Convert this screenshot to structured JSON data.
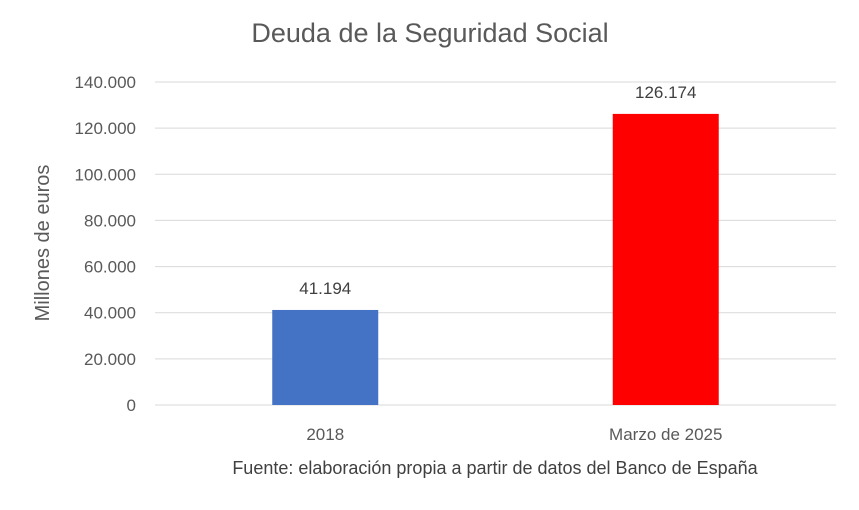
{
  "chart_data": {
    "type": "bar",
    "title": "Deuda de la Seguridad Social",
    "ylabel": "Millones de euros",
    "xlabel": "",
    "categories": [
      "2018",
      "Marzo de 2025"
    ],
    "values": [
      41194,
      126174
    ],
    "data_labels": [
      "41.194",
      "126.174"
    ],
    "bar_colors": [
      "#4472c4",
      "#ff0000"
    ],
    "ylim": [
      0,
      140000
    ],
    "yticks": [
      0,
      20000,
      40000,
      60000,
      80000,
      100000,
      120000,
      140000
    ],
    "ytick_labels": [
      "0",
      "20.000",
      "40.000",
      "60.000",
      "80.000",
      "100.000",
      "120.000",
      "140.000"
    ],
    "grid": true,
    "legend": "none"
  },
  "source_note": "Fuente: elaboración propia a partir de datos del Banco de España"
}
